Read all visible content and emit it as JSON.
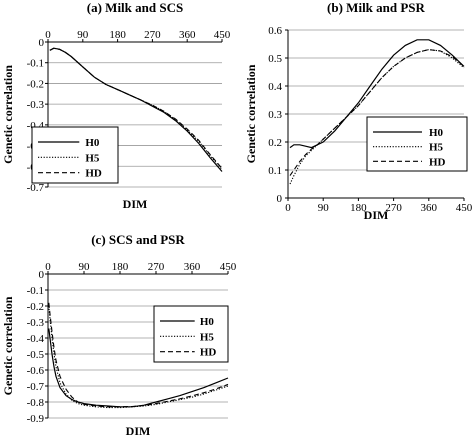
{
  "chart_data": [
    {
      "type": "line",
      "title": "(a) Milk and SCS",
      "xlabel": "DIM",
      "ylabel": "Genetic correlation",
      "xlim": [
        0,
        450
      ],
      "ylim": [
        -0.7,
        0
      ],
      "x_ticks": [
        "0",
        "90",
        "180",
        "270",
        "360",
        "450"
      ],
      "y_ticks": [
        "0",
        "-0.1",
        "-0.2",
        "-0.3",
        "-0.4",
        "-0.5",
        "-0.6",
        "-0.7"
      ],
      "x_axis_position": "top",
      "grid": true,
      "legend": "bottom-left",
      "x": [
        5,
        15,
        30,
        45,
        60,
        90,
        120,
        150,
        180,
        210,
        240,
        270,
        300,
        330,
        360,
        390,
        420,
        450
      ],
      "series": [
        {
          "name": "H0",
          "style": "solid",
          "values": [
            -0.04,
            -0.03,
            -0.035,
            -0.05,
            -0.07,
            -0.12,
            -0.17,
            -0.205,
            -0.23,
            -0.255,
            -0.28,
            -0.31,
            -0.34,
            -0.38,
            -0.43,
            -0.49,
            -0.56,
            -0.625
          ]
        },
        {
          "name": "H5",
          "style": "dotted",
          "values": [
            -0.04,
            -0.03,
            -0.035,
            -0.05,
            -0.07,
            -0.12,
            -0.17,
            -0.205,
            -0.23,
            -0.255,
            -0.28,
            -0.305,
            -0.335,
            -0.375,
            -0.425,
            -0.48,
            -0.55,
            -0.615
          ]
        },
        {
          "name": "HD",
          "style": "dashed",
          "values": [
            -0.04,
            -0.03,
            -0.035,
            -0.05,
            -0.07,
            -0.12,
            -0.17,
            -0.205,
            -0.23,
            -0.255,
            -0.28,
            -0.305,
            -0.335,
            -0.372,
            -0.42,
            -0.475,
            -0.545,
            -0.61
          ]
        }
      ]
    },
    {
      "type": "line",
      "title": "(b) Milk and PSR",
      "xlabel": "DIM",
      "ylabel": "Genetic correlation",
      "xlim": [
        0,
        450
      ],
      "ylim": [
        0,
        0.6
      ],
      "x_ticks": [
        "0",
        "90",
        "180",
        "270",
        "360",
        "450"
      ],
      "y_ticks": [
        "0",
        "0.1",
        "0.2",
        "0.3",
        "0.4",
        "0.5",
        "0.6"
      ],
      "x_axis_position": "bottom",
      "grid": true,
      "legend": "bottom-right",
      "x": [
        5,
        15,
        30,
        45,
        60,
        75,
        90,
        120,
        150,
        180,
        210,
        240,
        270,
        300,
        330,
        360,
        390,
        420,
        450
      ],
      "series": [
        {
          "name": "H0",
          "style": "solid",
          "values": [
            0.18,
            0.19,
            0.19,
            0.185,
            0.18,
            0.19,
            0.2,
            0.24,
            0.29,
            0.34,
            0.4,
            0.46,
            0.51,
            0.545,
            0.565,
            0.565,
            0.545,
            0.51,
            0.47
          ]
        },
        {
          "name": "H5",
          "style": "dotted",
          "values": [
            0.05,
            0.08,
            0.12,
            0.15,
            0.17,
            0.19,
            0.21,
            0.25,
            0.29,
            0.33,
            0.38,
            0.43,
            0.47,
            0.5,
            0.52,
            0.53,
            0.525,
            0.5,
            0.465
          ]
        },
        {
          "name": "HD",
          "style": "dashed",
          "values": [
            0.08,
            0.1,
            0.13,
            0.155,
            0.175,
            0.19,
            0.21,
            0.25,
            0.29,
            0.33,
            0.38,
            0.43,
            0.47,
            0.5,
            0.52,
            0.53,
            0.525,
            0.505,
            0.47
          ]
        }
      ]
    },
    {
      "type": "line",
      "title": "(c) SCS and PSR",
      "xlabel": "DIM",
      "ylabel": "Genetic correlation",
      "xlim": [
        0,
        450
      ],
      "ylim": [
        -0.9,
        0
      ],
      "x_ticks": [
        "0",
        "90",
        "180",
        "270",
        "360",
        "450"
      ],
      "y_ticks": [
        "0",
        "-0.1",
        "-0.2",
        "-0.3",
        "-0.4",
        "-0.5",
        "-0.6",
        "-0.7",
        "-0.8",
        "-0.9"
      ],
      "x_axis_position": "top",
      "grid": true,
      "legend": "right",
      "x": [
        2,
        5,
        10,
        15,
        20,
        30,
        45,
        60,
        75,
        90,
        120,
        150,
        180,
        210,
        240,
        270,
        300,
        330,
        360,
        390,
        420,
        450
      ],
      "series": [
        {
          "name": "H0",
          "style": "solid",
          "values": [
            -0.34,
            -0.4,
            -0.5,
            -0.58,
            -0.64,
            -0.71,
            -0.76,
            -0.785,
            -0.8,
            -0.81,
            -0.82,
            -0.825,
            -0.83,
            -0.83,
            -0.82,
            -0.8,
            -0.78,
            -0.76,
            -0.735,
            -0.71,
            -0.68,
            -0.65
          ]
        },
        {
          "name": "H5",
          "style": "dotted",
          "values": [
            -0.2,
            -0.28,
            -0.4,
            -0.5,
            -0.58,
            -0.68,
            -0.75,
            -0.79,
            -0.81,
            -0.82,
            -0.83,
            -0.835,
            -0.835,
            -0.83,
            -0.825,
            -0.815,
            -0.8,
            -0.785,
            -0.77,
            -0.75,
            -0.725,
            -0.7
          ]
        },
        {
          "name": "HD",
          "style": "dashed",
          "values": [
            -0.18,
            -0.25,
            -0.36,
            -0.46,
            -0.54,
            -0.64,
            -0.72,
            -0.77,
            -0.8,
            -0.815,
            -0.825,
            -0.83,
            -0.83,
            -0.828,
            -0.822,
            -0.81,
            -0.795,
            -0.78,
            -0.762,
            -0.742,
            -0.718,
            -0.69
          ]
        }
      ]
    }
  ]
}
